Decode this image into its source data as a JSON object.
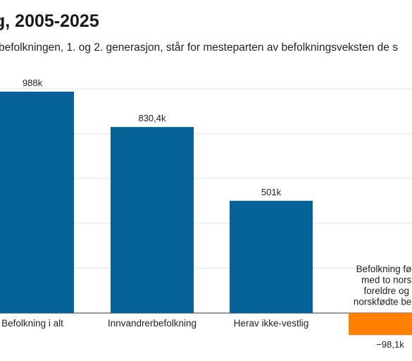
{
  "title": "g, 2005-2025",
  "subtitle": "befolkningen, 1. og 2. generasjon, står for mesteparten av befolkningsveksten de s",
  "colors": {
    "positive": "#05639a",
    "negative": "#ff8000",
    "grid": "#e6e6e6",
    "text": "#222222"
  },
  "chart_data": {
    "type": "bar",
    "categories": [
      "Befolkning i alt",
      "Innvandrerbefolkning",
      "Herav ikke-vestlig",
      "Befolkning født i Norge med to norskfødte foreldre og fire norskfødte besteforeldre"
    ],
    "values": [
      988,
      830.4,
      501,
      -98.1
    ],
    "value_labels": [
      "988k",
      "830,4k",
      "501k",
      "−98,1k"
    ],
    "category_label_lines": [
      [
        "Befolkning i alt"
      ],
      [
        "Innvandrerbefolkning"
      ],
      [
        "Herav ikke-vestlig"
      ],
      [
        "Befolkning født i",
        "med to norskf",
        "foreldre og fi",
        "norskfødte bestef"
      ]
    ],
    "ylim": [
      -100,
      1000
    ],
    "gridlines": [
      0,
      200,
      400,
      600,
      800,
      1000
    ],
    "grid": true
  }
}
